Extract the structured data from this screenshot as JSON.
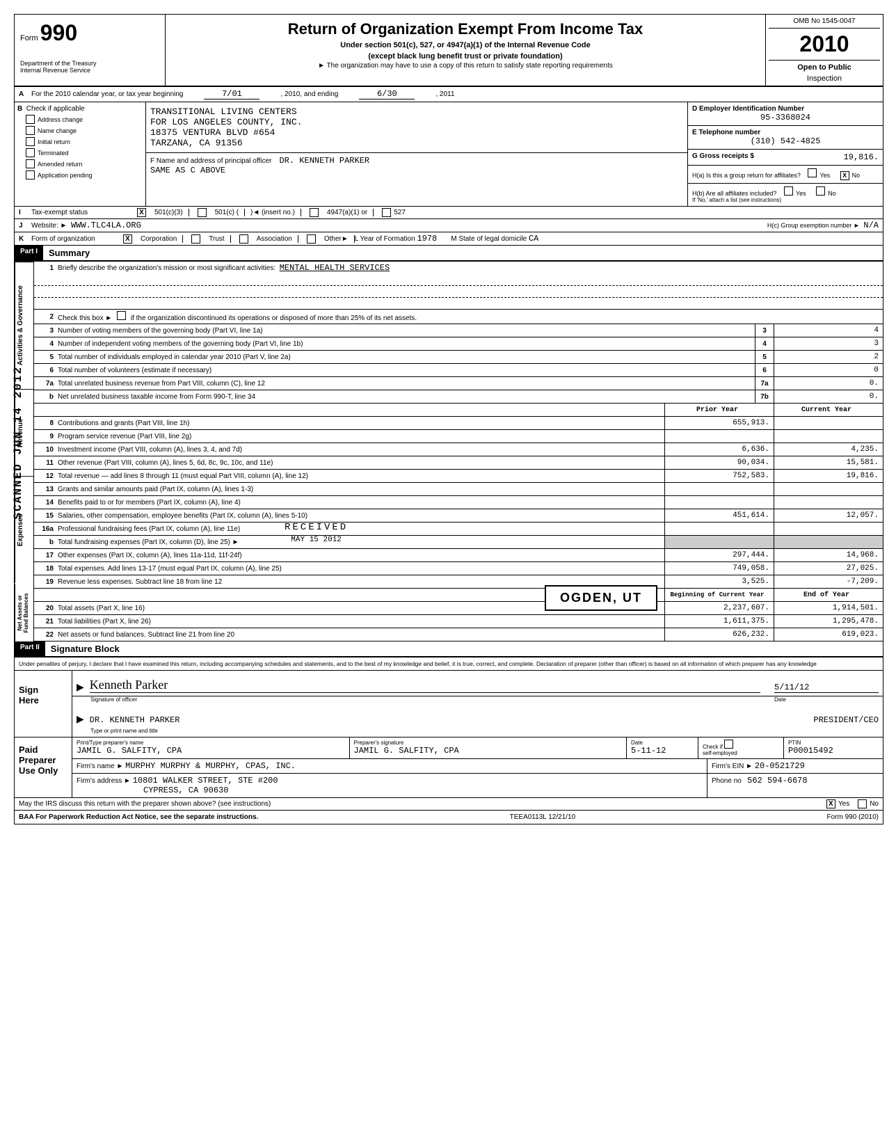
{
  "header": {
    "form_label": "Form",
    "form_number": "990",
    "dept1": "Department of the Treasury",
    "dept2": "Internal Revenue Service",
    "title": "Return of Organization Exempt From Income Tax",
    "subtitle1": "Under section 501(c), 527, or 4947(a)(1) of the Internal Revenue Code",
    "subtitle2": "(except black lung benefit trust or private foundation)",
    "subtitle3": "► The organization may have to use a copy of this return to satisfy state reporting requirements",
    "omb": "OMB No 1545-0047",
    "year": "2010",
    "open1": "Open to Public",
    "open2": "Inspection"
  },
  "row_a": {
    "prefix": "A",
    "text1": "For the 2010 calendar year, or tax year beginning",
    "begin": "7/01",
    "mid": ", 2010, and ending",
    "end": "6/30",
    "tail": ", 2011"
  },
  "section_b": {
    "label": "B",
    "check_label": "Check if applicable",
    "checks": [
      "Address change",
      "Name change",
      "Initial return",
      "Terminated",
      "Amended return",
      "Application pending"
    ],
    "org_line1": "TRANSITIONAL LIVING CENTERS",
    "org_line2": "FOR LOS ANGELES COUNTY, INC.",
    "org_line3": "18375 VENTURA BLVD #654",
    "org_line4": "TARZANA, CA 91356",
    "f_label": "F  Name and address of principal officer",
    "f_name": "DR. KENNETH PARKER",
    "f_addr": "SAME AS C ABOVE",
    "d_label": "D  Employer Identification Number",
    "d_val": "95-3368024",
    "e_label": "E  Telephone number",
    "e_val": "(310) 542-4825",
    "g_label": "G  Gross receipts $",
    "g_val": "19,816.",
    "ha_label": "H(a) Is this a group return for affiliates?",
    "hb_label": "H(b) Are all affiliates included?",
    "hb_note": "If 'No,' attach a list (see instructions)",
    "yes": "Yes",
    "no": "No"
  },
  "row_i": {
    "label": "I",
    "text": "Tax-exempt status",
    "opt1": "501(c)(3)",
    "opt2": "501(c) (",
    "insert": ")◄  (insert no.)",
    "opt3": "4947(a)(1) or",
    "opt4": "527"
  },
  "row_j": {
    "label": "J",
    "text": "Website: ►",
    "val": "WWW.TLC4LA.ORG",
    "hc_label": "H(c) Group exemption number ►",
    "hc_val": "N/A"
  },
  "row_k": {
    "label": "K",
    "text": "Form of organization",
    "opts": [
      "Corporation",
      "Trust",
      "Association",
      "Other►"
    ],
    "l_label": "L Year of Formation",
    "l_val": "1978",
    "m_label": "M State of legal domicile",
    "m_val": "CA"
  },
  "part1": {
    "header": "Part I",
    "title": "Summary",
    "vert_gov": "Activities & Governance",
    "vert_rev": "Revenue",
    "vert_exp": "Expenses",
    "vert_net": "Net Assets or\nFund Balances",
    "line1_text": "Briefly describe the organization's mission or most significant activities:",
    "line1_val": "MENTAL HEALTH SERVICES",
    "line2_text": "Check this box ►         if the organization discontinued its operations or disposed of more than 25% of its net assets.",
    "lines_gov": [
      {
        "n": "3",
        "t": "Number of voting members of the governing body (Part VI, line 1a)",
        "box": "3",
        "v": "4"
      },
      {
        "n": "4",
        "t": "Number of independent voting members of the governing body (Part VI, line 1b)",
        "box": "4",
        "v": "3"
      },
      {
        "n": "5",
        "t": "Total number of individuals employed in calendar year 2010 (Part V, line 2a)",
        "box": "5",
        "v": "2"
      },
      {
        "n": "6",
        "t": "Total number of volunteers (estimate if necessary)",
        "box": "6",
        "v": "0"
      },
      {
        "n": "7a",
        "t": "Total unrelated business revenue from Part VIII, column (C), line 12",
        "box": "7a",
        "v": "0."
      },
      {
        "n": "b",
        "t": "Net unrelated business taxable income from Form 990-T, line 34",
        "box": "7b",
        "v": "0."
      }
    ],
    "col_prior": "Prior Year",
    "col_current": "Current Year",
    "lines_rev": [
      {
        "n": "8",
        "t": "Contributions and grants (Part VIII, line 1h)",
        "p": "655,913.",
        "c": ""
      },
      {
        "n": "9",
        "t": "Program service revenue (Part VIII, line 2g)",
        "p": "",
        "c": ""
      },
      {
        "n": "10",
        "t": "Investment income (Part VIII, column (A), lines 3, 4, and 7d)",
        "p": "6,636.",
        "c": "4,235."
      },
      {
        "n": "11",
        "t": "Other revenue (Part VIII, column (A), lines 5, 6d, 8c, 9c, 10c, and 11e)",
        "p": "90,034.",
        "c": "15,581."
      },
      {
        "n": "12",
        "t": "Total revenue — add lines 8 through 11 (must equal Part VIII, column (A), line 12)",
        "p": "752,583.",
        "c": "19,816."
      }
    ],
    "lines_exp": [
      {
        "n": "13",
        "t": "Grants and similar amounts paid (Part IX, column (A), lines 1-3)",
        "p": "",
        "c": ""
      },
      {
        "n": "14",
        "t": "Benefits paid to or for members (Part IX, column (A), line 4)",
        "p": "",
        "c": ""
      },
      {
        "n": "15",
        "t": "Salaries, other compensation, employee benefits (Part IX, column (A), lines 5-10)",
        "p": "451,614.",
        "c": "12,057."
      },
      {
        "n": "16a",
        "t": "Professional fundraising fees (Part IX, column (A), line 11e)",
        "p": "",
        "c": "",
        "shaded_c": false
      },
      {
        "n": "b",
        "t": "Total fundraising expenses (Part IX, column (D), line 25) ►",
        "p": "",
        "c": "",
        "shaded_p": true,
        "shaded_c": true
      },
      {
        "n": "17",
        "t": "Other expenses (Part IX, column (A), lines 11a-11d, 11f-24f)",
        "p": "297,444.",
        "c": "14,968."
      },
      {
        "n": "18",
        "t": "Total expenses. Add lines 13-17 (must equal Part IX, column (A), line 25)",
        "p": "749,058.",
        "c": "27,025."
      },
      {
        "n": "19",
        "t": "Revenue less expenses. Subtract line 18 from line 12",
        "p": "3,525.",
        "c": "-7,209."
      }
    ],
    "col_begin": "Beginning of Current Year",
    "col_end": "End of Year",
    "lines_net": [
      {
        "n": "20",
        "t": "Total assets (Part X, line 16)",
        "p": "2,237,607.",
        "c": "1,914,501."
      },
      {
        "n": "21",
        "t": "Total liabilities (Part X, line 26)",
        "p": "1,611,375.",
        "c": "1,295,478."
      },
      {
        "n": "22",
        "t": "Net assets or fund balances. Subtract line 21 from line 20",
        "p": "626,232.",
        "c": "619,023."
      }
    ],
    "received": "RECEIVED",
    "received_date": "MAY 15 2012",
    "stamp": "OGDEN, UT"
  },
  "part2": {
    "header": "Part II",
    "title": "Signature Block",
    "penalties": "Under penalties of perjury, I declare that I have examined this return, including accompanying schedules and statements, and to the best of my knowledge and belief, it is true, correct, and complete. Declaration of preparer (other than officer) is based on all information of which preparer has any knowledge",
    "sign_here": "Sign\nHere",
    "sig_label": "Signature of officer",
    "date_label": "Date",
    "date_val": "5/11/12",
    "name_val": "DR. KENNETH PARKER",
    "title_val": "PRESIDENT/CEO",
    "name_label": "Type or print name and title",
    "paid": "Paid\nPreparer\nUse Only",
    "prep_name_label": "Print/Type preparer's name",
    "prep_name": "JAMIL G. SALFITY, CPA",
    "prep_sig_label": "Preparer's signature",
    "prep_sig": "JAMIL G. SALFITY, CPA",
    "prep_date": "5-11-12",
    "check_label": "Check         if",
    "self_emp": "self-employed",
    "ptin_label": "PTIN",
    "ptin": "P00015492",
    "firm_name_label": "Firm's name     ►",
    "firm_name": "MURPHY MURPHY & MURPHY, CPAS, INC.",
    "firm_addr_label": "Firm's address  ►",
    "firm_addr1": "10801 WALKER STREET, STE #200",
    "firm_addr2": "CYPRESS, CA 90630",
    "firm_ein_label": "Firm's EIN ►",
    "firm_ein": "20-0521729",
    "phone_label": "Phone no",
    "phone": "562 594-6678",
    "discuss": "May the IRS discuss this return with the preparer shown above? (see instructions)",
    "yes": "Yes",
    "no": "No"
  },
  "footer": {
    "baa": "BAA  For Paperwork Reduction Act Notice, see the separate instructions.",
    "code": "TEEA0113L  12/21/10",
    "form": "Form 990 (2010)"
  },
  "scanned_jun": "SCANNED JUN 14 2012"
}
